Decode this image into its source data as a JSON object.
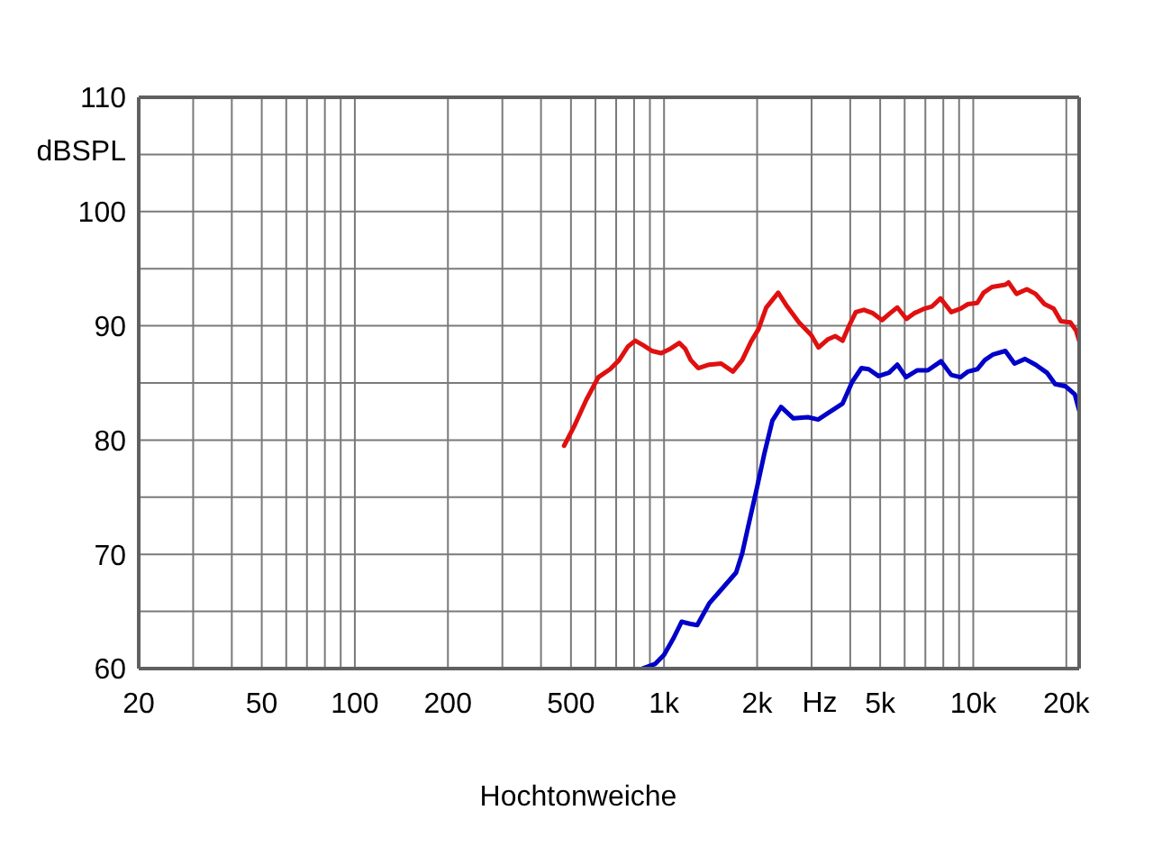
{
  "chart_data": {
    "type": "line",
    "xlabel": "Hz",
    "ylabel": "dBSPL",
    "annotations": [
      "Hochtonweiche"
    ],
    "log": "x",
    "grid": true,
    "marker": "none",
    "line_style": "solid",
    "xlim": [
      20,
      22000
    ],
    "xticks": [
      20,
      {
        "value": 30,
        "label": null
      },
      {
        "value": 40,
        "label": null
      },
      50,
      {
        "value": 60,
        "label": null
      },
      {
        "value": 70,
        "label": null
      },
      {
        "value": 80,
        "label": null
      },
      {
        "value": 90,
        "label": null
      },
      100,
      200,
      {
        "value": 300,
        "label": null
      },
      {
        "value": 400,
        "label": null
      },
      500,
      {
        "value": 600,
        "label": null
      },
      {
        "value": 700,
        "label": null
      },
      {
        "value": 800,
        "label": null
      },
      {
        "value": 900,
        "label": null
      },
      {
        "value": 1000,
        "label": "1k"
      },
      {
        "value": 2000,
        "label": "2k"
      },
      {
        "value": 3000,
        "label": null
      },
      {
        "value": 4000,
        "label": null
      },
      {
        "value": 5000,
        "label": "5k"
      },
      {
        "value": 6000,
        "label": null
      },
      {
        "value": 7000,
        "label": null
      },
      {
        "value": 8000,
        "label": null
      },
      {
        "value": 9000,
        "label": null
      },
      {
        "value": 10000,
        "label": "10k"
      },
      {
        "value": 20000,
        "label": "20k"
      }
    ],
    "ylim": [
      60,
      110
    ],
    "yticks": [
      60,
      {
        "value": 65,
        "label": null
      },
      70,
      {
        "value": 75,
        "label": null
      },
      80,
      {
        "value": 85,
        "label": null
      },
      90,
      {
        "value": 95,
        "label": null
      },
      100,
      {
        "value": 105,
        "label": null
      },
      110
    ],
    "series": [
      {
        "color": "#e01010",
        "x": [
          475,
          512,
          560,
          613,
          669,
          716,
          765,
          807,
          856,
          915,
          979,
          1050,
          1120,
          1170,
          1220,
          1290,
          1400,
          1530,
          1670,
          1790,
          1910,
          2020,
          2140,
          2340,
          2500,
          2730,
          2990,
          3160,
          3380,
          3580,
          3780,
          3950,
          4170,
          4430,
          4740,
          5070,
          5380,
          5680,
          6080,
          6440,
          6950,
          7360,
          7840,
          8490,
          9090,
          9620,
          10300,
          10800,
          11500,
          12700,
          13000,
          13800,
          14900,
          15900,
          17000,
          18200,
          19200,
          20600,
          21500,
          22000
        ],
        "values": [
          79.5,
          81.2,
          83.5,
          85.5,
          86.2,
          87.0,
          88.2,
          88.7,
          88.3,
          87.8,
          87.6,
          88.0,
          88.5,
          88.0,
          87.0,
          86.3,
          86.6,
          86.7,
          86.0,
          87.0,
          88.6,
          89.7,
          91.6,
          92.9,
          91.7,
          90.3,
          89.2,
          88.1,
          88.8,
          89.1,
          88.7,
          89.9,
          91.2,
          91.4,
          91.1,
          90.5,
          91.1,
          91.6,
          90.6,
          91.1,
          91.5,
          91.7,
          92.4,
          91.2,
          91.5,
          91.9,
          92.0,
          92.9,
          93.4,
          93.6,
          93.8,
          92.8,
          93.2,
          92.8,
          91.9,
          91.5,
          90.4,
          90.3,
          89.6,
          88.7
        ]
      },
      {
        "color": "#0000c8",
        "x": [
          850,
          935,
          1000,
          1070,
          1140,
          1220,
          1280,
          1400,
          1530,
          1710,
          1790,
          1870,
          2000,
          2110,
          2240,
          2390,
          2620,
          2920,
          3150,
          3410,
          3780,
          4060,
          4350,
          4590,
          4940,
          5340,
          5680,
          6060,
          6580,
          7130,
          7870,
          8490,
          9090,
          9620,
          10300,
          10900,
          11600,
          12700,
          13600,
          14700,
          15900,
          17300,
          18400,
          19900,
          21300,
          22000
        ],
        "values": [
          60.0,
          60.4,
          61.2,
          62.6,
          64.1,
          63.9,
          63.8,
          65.7,
          66.9,
          68.4,
          70.1,
          72.4,
          75.9,
          78.8,
          81.7,
          82.9,
          81.9,
          82.0,
          81.8,
          82.4,
          83.2,
          85.1,
          86.3,
          86.2,
          85.6,
          85.9,
          86.6,
          85.5,
          86.1,
          86.1,
          86.9,
          85.7,
          85.5,
          86.0,
          86.2,
          87.0,
          87.5,
          87.8,
          86.7,
          87.1,
          86.6,
          85.9,
          84.9,
          84.7,
          84.0,
          82.6
        ]
      }
    ]
  }
}
